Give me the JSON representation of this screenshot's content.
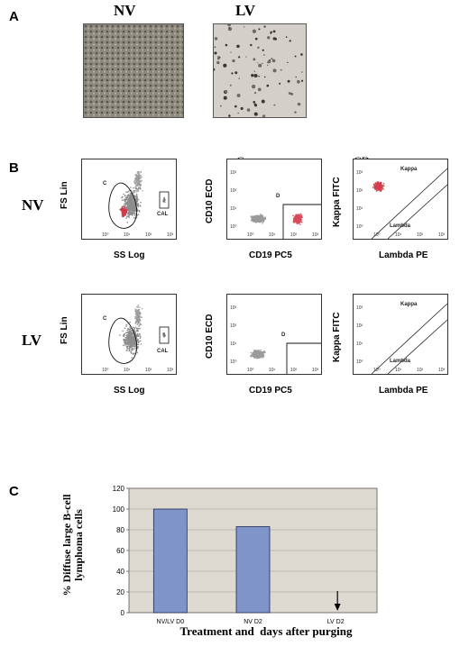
{
  "panelA": {
    "letter": "A",
    "nv_label": "NV",
    "lv_label": "LV"
  },
  "panelB": {
    "letter": "B",
    "row_nv": "NV",
    "row_lv": "LV",
    "col2_header": "C",
    "col3_header": "CD",
    "scatter": {
      "ylabel": "FS Lin",
      "xlabel": "SS Log",
      "gate_c": "C",
      "gate_cal": "CAL"
    },
    "cd": {
      "ylabel": "CD10 ECD",
      "xlabel": "CD19 PC5",
      "gate_d": "D"
    },
    "kl": {
      "ylabel": "Kappa FITC",
      "xlabel": "Lambda PE",
      "kappa": "Kappa",
      "lambda": "Lambda"
    },
    "ticks": [
      "10⁰",
      "10¹",
      "10²",
      "10³"
    ]
  },
  "panelC": {
    "letter": "C"
  },
  "chart_data": {
    "type": "bar",
    "categories": [
      "NV/LV D0",
      "NV D2",
      "LV D2"
    ],
    "values": [
      100,
      83,
      0
    ],
    "xlabel": "Treatment and  days after purging",
    "ylabel": "% Diffuse large B-cell lymphoma cells",
    "ylim": [
      0,
      120
    ],
    "yticks": [
      "0",
      "20",
      "40",
      "60",
      "80",
      "100",
      "120"
    ],
    "bar_color": "#7f94c9",
    "plot_bg": "#dedad2",
    "grid": true,
    "annotation": "arrow at LV D2"
  }
}
